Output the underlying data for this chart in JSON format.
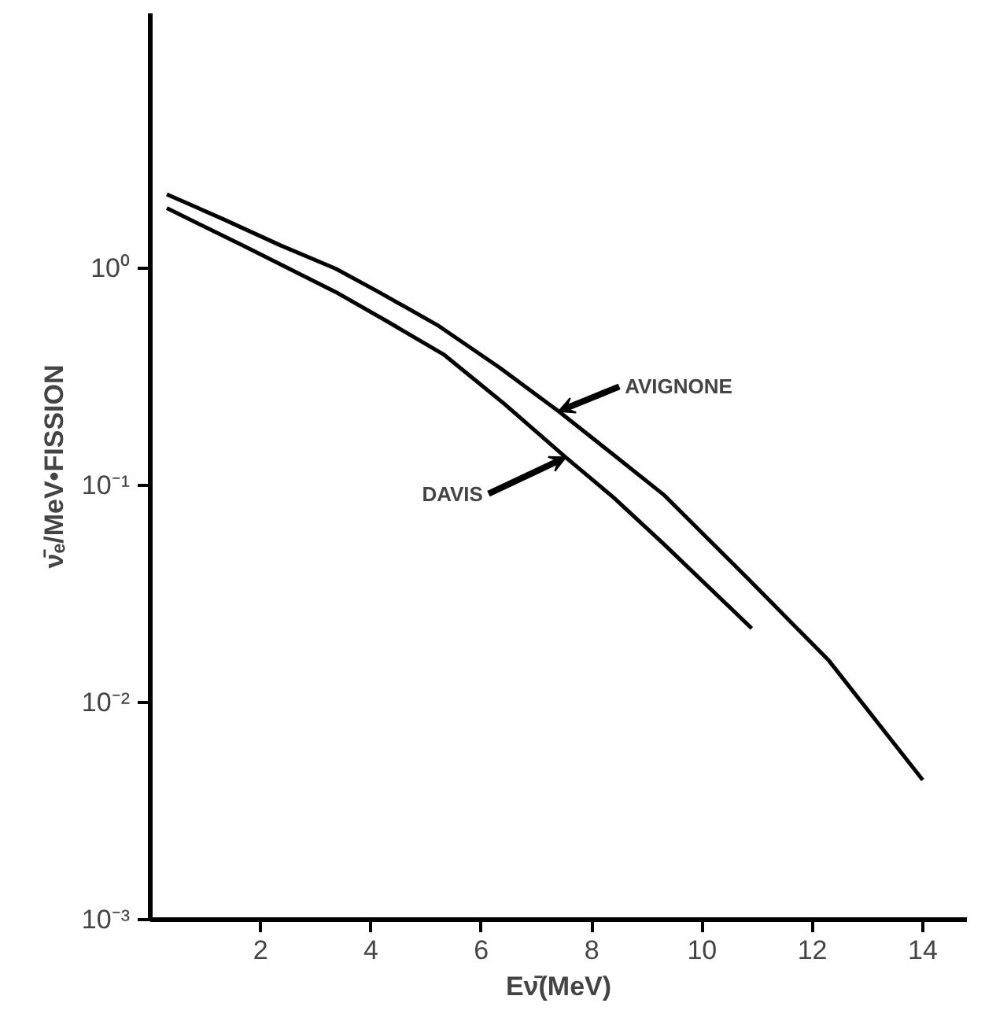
{
  "chart_data": {
    "type": "line",
    "xlabel": "Eν̄(MeV)",
    "ylabel": "ν̄ₑ/MeV•FISSION",
    "log": "y",
    "grid": false,
    "marker": "none",
    "line_style": "solid",
    "xlim": [
      0,
      14.8
    ],
    "ylim": [
      0.001,
      15
    ],
    "xticks": [
      2,
      4,
      6,
      8,
      10,
      12,
      14
    ],
    "yticks": [
      {
        "value": 1,
        "label": "10⁰"
      },
      {
        "value": 0.1,
        "label": "10⁻¹"
      },
      {
        "value": 0.01,
        "label": "10⁻²"
      },
      {
        "value": 0.001,
        "label": "10⁻³"
      }
    ],
    "series": [
      {
        "color": "#000000",
        "x": [
          0.3,
          1.3,
          2.36,
          3.36,
          4.1,
          5.2,
          6.33,
          7.4,
          8.3,
          9.3,
          10.8,
          12.3,
          14.0
        ],
        "values": [
          2.2,
          1.7,
          1.28,
          1.0,
          0.79,
          0.55,
          0.35,
          0.22,
          0.145,
          0.091,
          0.038,
          0.0156,
          0.0044
        ]
      },
      {
        "color": "#000000",
        "x": [
          0.3,
          1.67,
          3.36,
          4.3,
          5.33,
          6.4,
          7.53,
          8.4,
          9.3,
          10.9
        ],
        "values": [
          1.9,
          1.28,
          0.78,
          0.57,
          0.4,
          0.24,
          0.135,
          0.088,
          0.054,
          0.022
        ]
      }
    ],
    "annotations": [
      {
        "text": "AVIGNONE",
        "x": 7.4,
        "y": 0.22
      },
      {
        "text": "DAVIS",
        "x": 7.53,
        "y": 0.135
      }
    ]
  }
}
